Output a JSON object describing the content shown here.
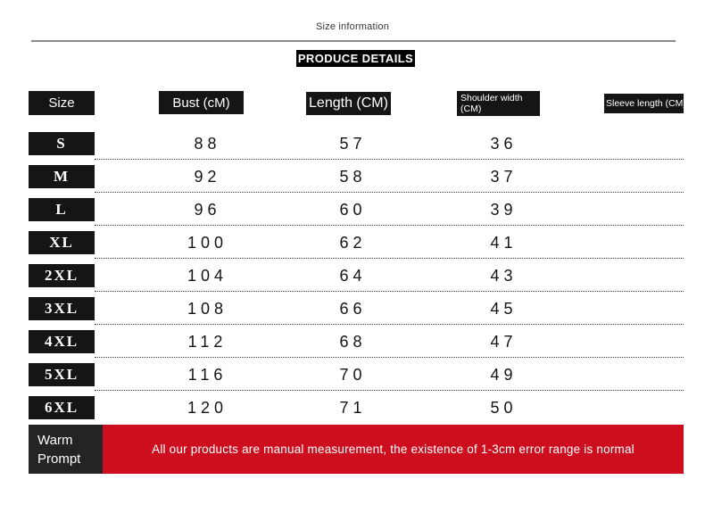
{
  "header": {
    "title": "Size information",
    "banner": "PRODUCE DETAILS"
  },
  "colors": {
    "accent_red": "#cc0e1e",
    "box_black": "#151515",
    "divider_gray": "#8a8a8a"
  },
  "table": {
    "columns": {
      "size": "Size",
      "bust": "Bust (cM)",
      "length": "Length (CM)",
      "shoulder_line1": "Shoulder width",
      "shoulder_line2": "(CM)",
      "sleeve": "Sleeve length (CM)"
    },
    "rows": [
      {
        "size": "S",
        "bust": "88",
        "length": "57",
        "shoulder": "36",
        "sleeve": ""
      },
      {
        "size": "M",
        "bust": "92",
        "length": "58",
        "shoulder": "37",
        "sleeve": ""
      },
      {
        "size": "L",
        "bust": "96",
        "length": "60",
        "shoulder": "39",
        "sleeve": ""
      },
      {
        "size": "XL",
        "bust": "100",
        "length": "62",
        "shoulder": "41",
        "sleeve": ""
      },
      {
        "size": "2XL",
        "bust": "104",
        "length": "64",
        "shoulder": "43",
        "sleeve": ""
      },
      {
        "size": "3XL",
        "bust": "108",
        "length": "66",
        "shoulder": "45",
        "sleeve": ""
      },
      {
        "size": "4XL",
        "bust": "112",
        "length": "68",
        "shoulder": "47",
        "sleeve": ""
      },
      {
        "size": "5XL",
        "bust": "116",
        "length": "70",
        "shoulder": "49",
        "sleeve": ""
      },
      {
        "size": "6XL",
        "bust": "120",
        "length": "71",
        "shoulder": "50",
        "sleeve": ""
      }
    ]
  },
  "warm_prompt": {
    "label": "Warm Prompt",
    "message": "All our products are manual measurement, the existence of 1-3cm error range is normal"
  }
}
